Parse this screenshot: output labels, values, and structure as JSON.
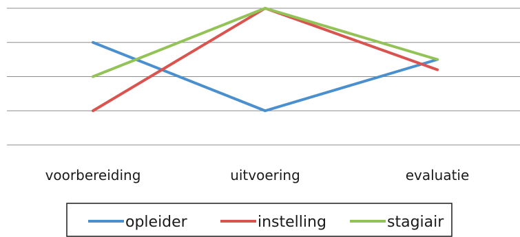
{
  "chart_data": {
    "type": "line",
    "categories": [
      "voorbereiding",
      "uitvoering",
      "evaluatie"
    ],
    "series": [
      {
        "name": "opleider",
        "values": [
          3,
          1,
          2.5
        ],
        "color": "#4a8fce"
      },
      {
        "name": "instelling",
        "values": [
          1,
          4,
          2.2
        ],
        "color": "#d9534f"
      },
      {
        "name": "stagiair",
        "values": [
          2,
          4,
          2.5
        ],
        "color": "#93c356"
      }
    ],
    "ylim": [
      0,
      4
    ],
    "grid": true,
    "legend_position": "bottom",
    "title": "",
    "xlabel": "",
    "ylabel": ""
  }
}
